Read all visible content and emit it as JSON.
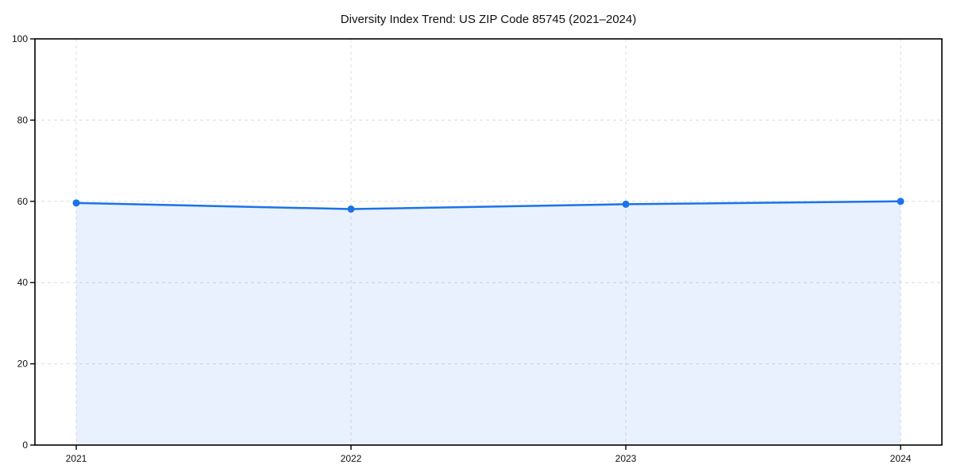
{
  "chart_data": {
    "type": "area",
    "title": "Diversity Index Trend: US ZIP Code 85745 (2021–2024)",
    "x": [
      "2021",
      "2022",
      "2023",
      "2024"
    ],
    "series": [
      {
        "name": "Diversity Index",
        "values": [
          59.6,
          58.1,
          59.3,
          60.0
        ]
      }
    ],
    "xlabel": "",
    "ylabel": "",
    "ylim": [
      0,
      100
    ],
    "yticks": [
      0,
      20,
      40,
      60,
      80,
      100
    ],
    "grid": true,
    "grid_style": "dashed",
    "legend_position": "none",
    "colors": {
      "line": "#1a73e8",
      "marker": "#1a73e8",
      "fill": "rgba(26,115,232,0.10)",
      "grid": "#dcdcdc",
      "spine": "#000000",
      "text": "#111111",
      "background": "#ffffff"
    },
    "marker_radius": 4.5,
    "line_width": 2.5
  }
}
